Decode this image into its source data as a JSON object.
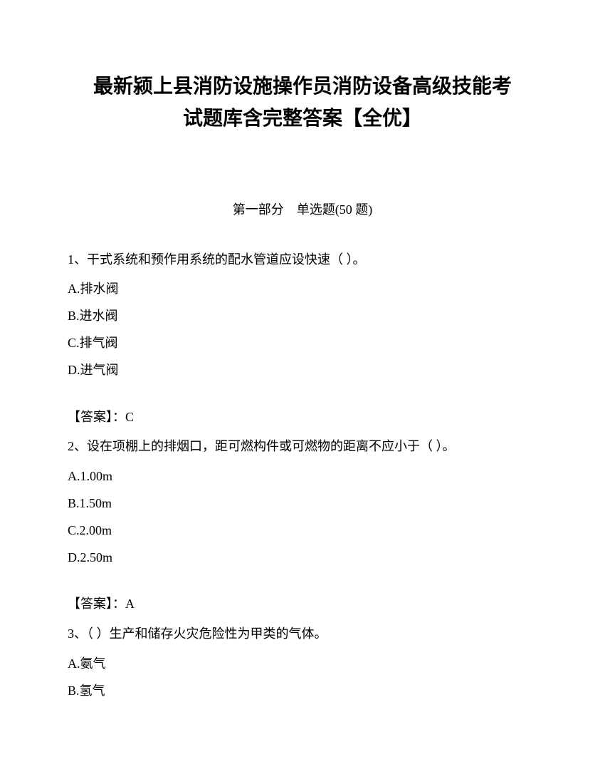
{
  "title_line1": "最新颍上县消防设施操作员消防设备高级技能考",
  "title_line2": "试题库含完整答案【全优】",
  "section_header": "第一部分　单选题(50 题)",
  "questions": [
    {
      "stem": "1、干式系统和预作用系统的配水管道应设快速（ ）。",
      "options": [
        "A.排水阀",
        "B.进水阀",
        "C.排气阀",
        "D.进气阀"
      ],
      "answer": "【答案】：C"
    },
    {
      "stem": "2、设在项棚上的排烟口，距可燃构件或可燃物的距离不应小于（ ）。",
      "options": [
        "A.1.00m",
        "B.1.50m",
        "C.2.00m",
        "D.2.50m"
      ],
      "answer": "【答案】：A"
    },
    {
      "stem": "3、（ ）生产和储存火灾危险性为甲类的气体。",
      "options": [
        "A.氨气",
        "B.氢气"
      ],
      "answer": null
    }
  ]
}
